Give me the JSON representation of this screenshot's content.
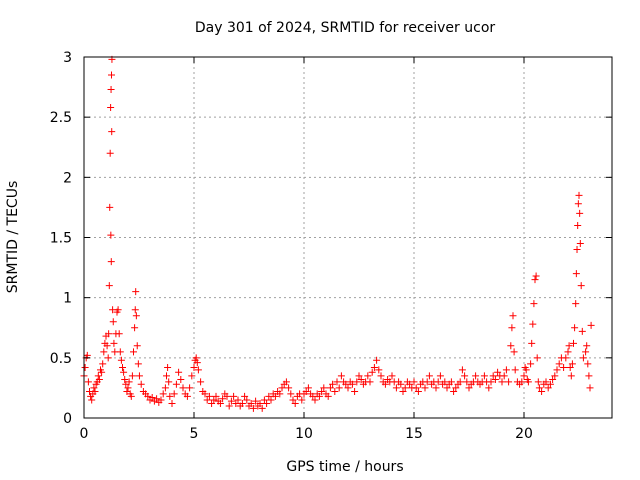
{
  "chart_data": {
    "type": "scatter",
    "title": "Day 301 of 2024, SRMTID for receiver ucor",
    "xlabel": "GPS time / hours",
    "ylabel": "SRMTID / TECUs",
    "xlim": [
      0,
      24
    ],
    "ylim": [
      0,
      3
    ],
    "xticks": [
      0,
      5,
      10,
      15,
      20
    ],
    "yticks": [
      0,
      0.5,
      1,
      1.5,
      2,
      2.5,
      3
    ],
    "xtick_labels": [
      "0",
      "5",
      "10",
      "15",
      "20"
    ],
    "ytick_labels": [
      "0",
      "0.5",
      "1",
      "1.5",
      "2",
      "2.5",
      "3"
    ],
    "grid": true,
    "marker": "+",
    "color": "#ff0000",
    "series": [
      {
        "name": "SRMTID",
        "points": [
          [
            0.0,
            0.35
          ],
          [
            0.05,
            0.42
          ],
          [
            0.1,
            0.5
          ],
          [
            0.15,
            0.52
          ],
          [
            0.2,
            0.3
          ],
          [
            0.25,
            0.22
          ],
          [
            0.3,
            0.18
          ],
          [
            0.35,
            0.15
          ],
          [
            0.4,
            0.2
          ],
          [
            0.45,
            0.25
          ],
          [
            0.5,
            0.22
          ],
          [
            0.55,
            0.28
          ],
          [
            0.6,
            0.3
          ],
          [
            0.65,
            0.35
          ],
          [
            0.7,
            0.32
          ],
          [
            0.75,
            0.4
          ],
          [
            0.8,
            0.38
          ],
          [
            0.85,
            0.45
          ],
          [
            0.9,
            0.55
          ],
          [
            0.95,
            0.62
          ],
          [
            1.0,
            0.68
          ],
          [
            1.05,
            0.6
          ],
          [
            1.1,
            0.5
          ],
          [
            1.12,
            0.7
          ],
          [
            1.15,
            1.1
          ],
          [
            1.17,
            1.75
          ],
          [
            1.19,
            2.2
          ],
          [
            1.21,
            2.58
          ],
          [
            1.23,
            2.73
          ],
          [
            1.25,
            2.85
          ],
          [
            1.27,
            2.98
          ],
          [
            1.22,
            1.52
          ],
          [
            1.24,
            1.3
          ],
          [
            1.26,
            2.38
          ],
          [
            1.3,
            0.9
          ],
          [
            1.33,
            0.8
          ],
          [
            1.36,
            0.62
          ],
          [
            1.4,
            0.55
          ],
          [
            1.45,
            0.7
          ],
          [
            1.5,
            0.88
          ],
          [
            1.55,
            0.9
          ],
          [
            1.6,
            0.7
          ],
          [
            1.65,
            0.55
          ],
          [
            1.7,
            0.48
          ],
          [
            1.75,
            0.42
          ],
          [
            1.8,
            0.38
          ],
          [
            1.85,
            0.32
          ],
          [
            1.9,
            0.28
          ],
          [
            1.95,
            0.22
          ],
          [
            2.0,
            0.25
          ],
          [
            2.05,
            0.3
          ],
          [
            2.1,
            0.2
          ],
          [
            2.15,
            0.18
          ],
          [
            2.2,
            0.35
          ],
          [
            2.25,
            0.55
          ],
          [
            2.3,
            0.75
          ],
          [
            2.33,
            0.9
          ],
          [
            2.35,
            1.05
          ],
          [
            2.38,
            0.85
          ],
          [
            2.42,
            0.6
          ],
          [
            2.47,
            0.45
          ],
          [
            2.52,
            0.35
          ],
          [
            2.6,
            0.28
          ],
          [
            2.7,
            0.22
          ],
          [
            2.8,
            0.2
          ],
          [
            2.9,
            0.18
          ],
          [
            3.0,
            0.15
          ],
          [
            3.1,
            0.17
          ],
          [
            3.2,
            0.14
          ],
          [
            3.3,
            0.16
          ],
          [
            3.4,
            0.13
          ],
          [
            3.5,
            0.15
          ],
          [
            3.6,
            0.2
          ],
          [
            3.7,
            0.25
          ],
          [
            3.75,
            0.35
          ],
          [
            3.8,
            0.42
          ],
          [
            3.85,
            0.3
          ],
          [
            3.9,
            0.18
          ],
          [
            4.0,
            0.12
          ],
          [
            4.1,
            0.2
          ],
          [
            4.2,
            0.28
          ],
          [
            4.3,
            0.38
          ],
          [
            4.4,
            0.32
          ],
          [
            4.5,
            0.25
          ],
          [
            4.6,
            0.2
          ],
          [
            4.7,
            0.18
          ],
          [
            4.8,
            0.25
          ],
          [
            4.9,
            0.35
          ],
          [
            5.0,
            0.42
          ],
          [
            5.05,
            0.48
          ],
          [
            5.1,
            0.5
          ],
          [
            5.15,
            0.46
          ],
          [
            5.2,
            0.4
          ],
          [
            5.3,
            0.3
          ],
          [
            5.4,
            0.22
          ],
          [
            5.5,
            0.2
          ],
          [
            5.6,
            0.15
          ],
          [
            5.7,
            0.18
          ],
          [
            5.8,
            0.12
          ],
          [
            5.9,
            0.15
          ],
          [
            6.0,
            0.18
          ],
          [
            6.1,
            0.14
          ],
          [
            6.2,
            0.12
          ],
          [
            6.3,
            0.16
          ],
          [
            6.4,
            0.2
          ],
          [
            6.5,
            0.18
          ],
          [
            6.6,
            0.1
          ],
          [
            6.7,
            0.14
          ],
          [
            6.8,
            0.18
          ],
          [
            6.9,
            0.12
          ],
          [
            7.0,
            0.15
          ],
          [
            7.1,
            0.1
          ],
          [
            7.2,
            0.12
          ],
          [
            7.3,
            0.18
          ],
          [
            7.4,
            0.15
          ],
          [
            7.5,
            0.1
          ],
          [
            7.6,
            0.12
          ],
          [
            7.7,
            0.08
          ],
          [
            7.8,
            0.14
          ],
          [
            7.9,
            0.1
          ],
          [
            8.0,
            0.12
          ],
          [
            8.1,
            0.08
          ],
          [
            8.2,
            0.15
          ],
          [
            8.3,
            0.12
          ],
          [
            8.4,
            0.18
          ],
          [
            8.5,
            0.15
          ],
          [
            8.6,
            0.2
          ],
          [
            8.7,
            0.18
          ],
          [
            8.8,
            0.22
          ],
          [
            8.9,
            0.2
          ],
          [
            9.0,
            0.25
          ],
          [
            9.1,
            0.28
          ],
          [
            9.2,
            0.3
          ],
          [
            9.3,
            0.25
          ],
          [
            9.4,
            0.2
          ],
          [
            9.5,
            0.15
          ],
          [
            9.6,
            0.12
          ],
          [
            9.7,
            0.18
          ],
          [
            9.8,
            0.2
          ],
          [
            9.9,
            0.15
          ],
          [
            10.0,
            0.2
          ],
          [
            10.1,
            0.22
          ],
          [
            10.2,
            0.25
          ],
          [
            10.3,
            0.2
          ],
          [
            10.4,
            0.18
          ],
          [
            10.5,
            0.15
          ],
          [
            10.6,
            0.2
          ],
          [
            10.7,
            0.18
          ],
          [
            10.8,
            0.22
          ],
          [
            10.9,
            0.25
          ],
          [
            11.0,
            0.2
          ],
          [
            11.1,
            0.18
          ],
          [
            11.2,
            0.25
          ],
          [
            11.3,
            0.28
          ],
          [
            11.4,
            0.22
          ],
          [
            11.5,
            0.3
          ],
          [
            11.6,
            0.25
          ],
          [
            11.7,
            0.35
          ],
          [
            11.8,
            0.3
          ],
          [
            11.9,
            0.28
          ],
          [
            12.0,
            0.25
          ],
          [
            12.1,
            0.3
          ],
          [
            12.2,
            0.28
          ],
          [
            12.3,
            0.22
          ],
          [
            12.4,
            0.3
          ],
          [
            12.5,
            0.35
          ],
          [
            12.6,
            0.32
          ],
          [
            12.7,
            0.28
          ],
          [
            12.8,
            0.3
          ],
          [
            12.9,
            0.35
          ],
          [
            13.0,
            0.3
          ],
          [
            13.1,
            0.38
          ],
          [
            13.2,
            0.42
          ],
          [
            13.3,
            0.48
          ],
          [
            13.4,
            0.4
          ],
          [
            13.5,
            0.35
          ],
          [
            13.6,
            0.3
          ],
          [
            13.7,
            0.28
          ],
          [
            13.8,
            0.32
          ],
          [
            13.9,
            0.3
          ],
          [
            14.0,
            0.35
          ],
          [
            14.1,
            0.3
          ],
          [
            14.2,
            0.25
          ],
          [
            14.3,
            0.3
          ],
          [
            14.4,
            0.28
          ],
          [
            14.5,
            0.22
          ],
          [
            14.6,
            0.25
          ],
          [
            14.7,
            0.3
          ],
          [
            14.8,
            0.28
          ],
          [
            14.9,
            0.25
          ],
          [
            15.0,
            0.3
          ],
          [
            15.1,
            0.25
          ],
          [
            15.2,
            0.22
          ],
          [
            15.3,
            0.28
          ],
          [
            15.4,
            0.3
          ],
          [
            15.5,
            0.25
          ],
          [
            15.6,
            0.3
          ],
          [
            15.7,
            0.35
          ],
          [
            15.8,
            0.28
          ],
          [
            15.9,
            0.3
          ],
          [
            16.0,
            0.25
          ],
          [
            16.1,
            0.3
          ],
          [
            16.2,
            0.35
          ],
          [
            16.3,
            0.28
          ],
          [
            16.4,
            0.3
          ],
          [
            16.5,
            0.25
          ],
          [
            16.6,
            0.28
          ],
          [
            16.7,
            0.3
          ],
          [
            16.8,
            0.22
          ],
          [
            16.9,
            0.25
          ],
          [
            17.0,
            0.28
          ],
          [
            17.1,
            0.3
          ],
          [
            17.2,
            0.4
          ],
          [
            17.3,
            0.35
          ],
          [
            17.4,
            0.3
          ],
          [
            17.5,
            0.25
          ],
          [
            17.6,
            0.28
          ],
          [
            17.7,
            0.3
          ],
          [
            17.8,
            0.35
          ],
          [
            17.9,
            0.3
          ],
          [
            18.0,
            0.28
          ],
          [
            18.1,
            0.3
          ],
          [
            18.2,
            0.35
          ],
          [
            18.3,
            0.3
          ],
          [
            18.4,
            0.25
          ],
          [
            18.5,
            0.3
          ],
          [
            18.6,
            0.35
          ],
          [
            18.7,
            0.32
          ],
          [
            18.8,
            0.38
          ],
          [
            18.9,
            0.35
          ],
          [
            19.0,
            0.3
          ],
          [
            19.1,
            0.35
          ],
          [
            19.2,
            0.4
          ],
          [
            19.3,
            0.3
          ],
          [
            19.4,
            0.6
          ],
          [
            19.45,
            0.75
          ],
          [
            19.5,
            0.85
          ],
          [
            19.55,
            0.55
          ],
          [
            19.6,
            0.4
          ],
          [
            19.7,
            0.3
          ],
          [
            19.8,
            0.28
          ],
          [
            19.9,
            0.3
          ],
          [
            20.0,
            0.35
          ],
          [
            20.05,
            0.42
          ],
          [
            20.1,
            0.4
          ],
          [
            20.15,
            0.32
          ],
          [
            20.2,
            0.3
          ],
          [
            20.3,
            0.45
          ],
          [
            20.35,
            0.62
          ],
          [
            20.4,
            0.78
          ],
          [
            20.45,
            0.95
          ],
          [
            20.5,
            1.15
          ],
          [
            20.55,
            1.18
          ],
          [
            20.6,
            0.5
          ],
          [
            20.65,
            0.3
          ],
          [
            20.7,
            0.25
          ],
          [
            20.8,
            0.22
          ],
          [
            20.9,
            0.28
          ],
          [
            21.0,
            0.3
          ],
          [
            21.1,
            0.25
          ],
          [
            21.2,
            0.28
          ],
          [
            21.3,
            0.32
          ],
          [
            21.4,
            0.35
          ],
          [
            21.5,
            0.4
          ],
          [
            21.6,
            0.45
          ],
          [
            21.7,
            0.5
          ],
          [
            21.8,
            0.42
          ],
          [
            21.9,
            0.5
          ],
          [
            22.0,
            0.55
          ],
          [
            22.05,
            0.6
          ],
          [
            22.1,
            0.42
          ],
          [
            22.15,
            0.35
          ],
          [
            22.2,
            0.45
          ],
          [
            22.25,
            0.62
          ],
          [
            22.3,
            0.75
          ],
          [
            22.35,
            0.95
          ],
          [
            22.38,
            1.2
          ],
          [
            22.41,
            1.4
          ],
          [
            22.44,
            1.6
          ],
          [
            22.47,
            1.78
          ],
          [
            22.5,
            1.85
          ],
          [
            22.53,
            1.7
          ],
          [
            22.56,
            1.45
          ],
          [
            22.6,
            1.1
          ],
          [
            22.65,
            0.72
          ],
          [
            22.7,
            0.5
          ],
          [
            22.8,
            0.55
          ],
          [
            22.85,
            0.6
          ],
          [
            22.9,
            0.45
          ],
          [
            22.95,
            0.35
          ],
          [
            23.0,
            0.25
          ],
          [
            23.05,
            0.77
          ]
        ]
      }
    ]
  }
}
